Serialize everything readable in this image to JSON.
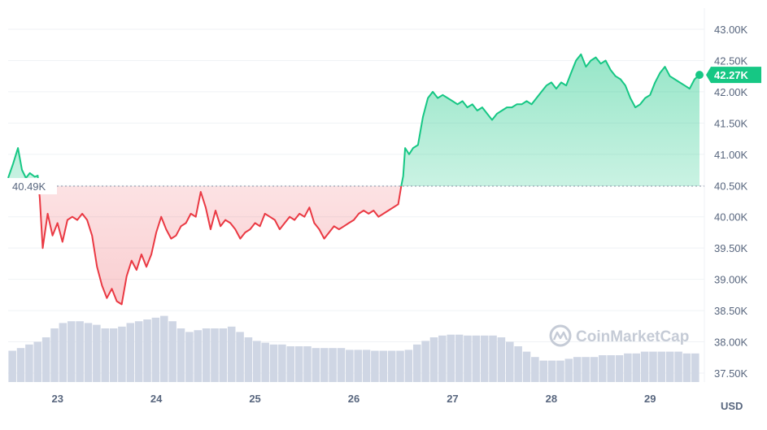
{
  "chart_data": {
    "type": "line",
    "x_labels": [
      "23",
      "24",
      "25",
      "26",
      "27",
      "28",
      "29"
    ],
    "y_ticks": [
      "43.00K",
      "42.50K",
      "42.00K",
      "41.50K",
      "41.00K",
      "40.50K",
      "40.00K",
      "39.50K",
      "39.00K",
      "38.50K",
      "38.00K",
      "37.50K"
    ],
    "y_tick_values": [
      43000,
      42500,
      42000,
      41500,
      41000,
      40500,
      40000,
      39500,
      39000,
      38500,
      38000,
      37500
    ],
    "ylim": [
      37500,
      43000
    ],
    "xlim": [
      22.5,
      29.5
    ],
    "unit_label": "USD",
    "reference_value": 40490,
    "reference_label": "40.49K",
    "current_value": 42270,
    "current_label": "42.27K",
    "up_color": "#16c784",
    "down_color": "#ea3943",
    "watermark": "CoinMarketCap",
    "series": [
      {
        "points": [
          [
            22.5,
            40620
          ],
          [
            22.55,
            40850
          ],
          [
            22.6,
            41100
          ],
          [
            22.64,
            40750
          ],
          [
            22.68,
            40620
          ],
          [
            22.72,
            40700
          ],
          [
            22.77,
            40640
          ],
          [
            22.8,
            40660
          ],
          [
            22.82,
            40300
          ],
          [
            22.85,
            39500
          ],
          [
            22.9,
            40050
          ],
          [
            22.95,
            39700
          ],
          [
            23.0,
            39900
          ],
          [
            23.05,
            39600
          ],
          [
            23.1,
            39950
          ],
          [
            23.15,
            40000
          ],
          [
            23.2,
            39950
          ],
          [
            23.25,
            40050
          ],
          [
            23.3,
            39950
          ],
          [
            23.35,
            39700
          ],
          [
            23.4,
            39200
          ],
          [
            23.45,
            38900
          ],
          [
            23.5,
            38700
          ],
          [
            23.55,
            38850
          ],
          [
            23.6,
            38650
          ],
          [
            23.65,
            38600
          ],
          [
            23.7,
            39050
          ],
          [
            23.75,
            39300
          ],
          [
            23.8,
            39150
          ],
          [
            23.85,
            39400
          ],
          [
            23.9,
            39200
          ],
          [
            23.95,
            39400
          ],
          [
            24.0,
            39750
          ],
          [
            24.05,
            40000
          ],
          [
            24.1,
            39800
          ],
          [
            24.15,
            39650
          ],
          [
            24.2,
            39700
          ],
          [
            24.25,
            39850
          ],
          [
            24.3,
            39900
          ],
          [
            24.35,
            40050
          ],
          [
            24.4,
            40000
          ],
          [
            24.45,
            40400
          ],
          [
            24.5,
            40150
          ],
          [
            24.55,
            39800
          ],
          [
            24.6,
            40100
          ],
          [
            24.65,
            39850
          ],
          [
            24.7,
            39950
          ],
          [
            24.75,
            39900
          ],
          [
            24.8,
            39800
          ],
          [
            24.85,
            39650
          ],
          [
            24.9,
            39750
          ],
          [
            24.95,
            39800
          ],
          [
            25.0,
            39900
          ],
          [
            25.05,
            39850
          ],
          [
            25.1,
            40050
          ],
          [
            25.15,
            40000
          ],
          [
            25.2,
            39950
          ],
          [
            25.25,
            39800
          ],
          [
            25.3,
            39900
          ],
          [
            25.35,
            40000
          ],
          [
            25.4,
            39950
          ],
          [
            25.45,
            40050
          ],
          [
            25.5,
            40000
          ],
          [
            25.55,
            40150
          ],
          [
            25.6,
            39900
          ],
          [
            25.65,
            39800
          ],
          [
            25.7,
            39650
          ],
          [
            25.75,
            39750
          ],
          [
            25.8,
            39850
          ],
          [
            25.85,
            39800
          ],
          [
            25.9,
            39850
          ],
          [
            25.95,
            39900
          ],
          [
            26.0,
            39950
          ],
          [
            26.05,
            40050
          ],
          [
            26.1,
            40100
          ],
          [
            26.15,
            40050
          ],
          [
            26.2,
            40100
          ],
          [
            26.25,
            40000
          ],
          [
            26.3,
            40050
          ],
          [
            26.35,
            40100
          ],
          [
            26.45,
            40200
          ],
          [
            26.48,
            40490
          ],
          [
            26.5,
            40650
          ],
          [
            26.52,
            41100
          ],
          [
            26.56,
            41000
          ],
          [
            26.6,
            41100
          ],
          [
            26.65,
            41150
          ],
          [
            26.7,
            41600
          ],
          [
            26.75,
            41900
          ],
          [
            26.8,
            42000
          ],
          [
            26.85,
            41900
          ],
          [
            26.9,
            41950
          ],
          [
            26.95,
            41900
          ],
          [
            27.0,
            41850
          ],
          [
            27.05,
            41800
          ],
          [
            27.1,
            41850
          ],
          [
            27.15,
            41750
          ],
          [
            27.2,
            41800
          ],
          [
            27.25,
            41700
          ],
          [
            27.3,
            41750
          ],
          [
            27.35,
            41650
          ],
          [
            27.4,
            41550
          ],
          [
            27.45,
            41650
          ],
          [
            27.5,
            41700
          ],
          [
            27.55,
            41750
          ],
          [
            27.6,
            41750
          ],
          [
            27.65,
            41800
          ],
          [
            27.7,
            41800
          ],
          [
            27.75,
            41850
          ],
          [
            27.8,
            41800
          ],
          [
            27.85,
            41900
          ],
          [
            27.9,
            42000
          ],
          [
            27.95,
            42100
          ],
          [
            28.0,
            42150
          ],
          [
            28.05,
            42050
          ],
          [
            28.1,
            42150
          ],
          [
            28.15,
            42100
          ],
          [
            28.2,
            42300
          ],
          [
            28.25,
            42500
          ],
          [
            28.3,
            42600
          ],
          [
            28.35,
            42400
          ],
          [
            28.4,
            42500
          ],
          [
            28.45,
            42550
          ],
          [
            28.5,
            42450
          ],
          [
            28.55,
            42500
          ],
          [
            28.6,
            42350
          ],
          [
            28.65,
            42250
          ],
          [
            28.7,
            42200
          ],
          [
            28.75,
            42100
          ],
          [
            28.8,
            41900
          ],
          [
            28.85,
            41750
          ],
          [
            28.9,
            41800
          ],
          [
            28.95,
            41900
          ],
          [
            29.0,
            41950
          ],
          [
            29.05,
            42150
          ],
          [
            29.1,
            42300
          ],
          [
            29.15,
            42400
          ],
          [
            29.2,
            42250
          ],
          [
            29.25,
            42200
          ],
          [
            29.3,
            42150
          ],
          [
            29.35,
            42100
          ],
          [
            29.4,
            42050
          ],
          [
            29.45,
            42200
          ],
          [
            29.5,
            42270
          ]
        ]
      }
    ],
    "volume": {
      "x_start": 22.5,
      "x_end": 29.5,
      "levels": [
        0.35,
        0.38,
        0.42,
        0.45,
        0.5,
        0.6,
        0.66,
        0.68,
        0.68,
        0.66,
        0.64,
        0.6,
        0.6,
        0.62,
        0.66,
        0.68,
        0.7,
        0.72,
        0.74,
        0.68,
        0.6,
        0.56,
        0.58,
        0.6,
        0.6,
        0.6,
        0.62,
        0.56,
        0.5,
        0.46,
        0.44,
        0.42,
        0.42,
        0.4,
        0.4,
        0.4,
        0.38,
        0.38,
        0.38,
        0.38,
        0.36,
        0.36,
        0.36,
        0.35,
        0.35,
        0.35,
        0.35,
        0.36,
        0.42,
        0.46,
        0.5,
        0.52,
        0.53,
        0.53,
        0.52,
        0.52,
        0.52,
        0.52,
        0.5,
        0.45,
        0.4,
        0.34,
        0.28,
        0.24,
        0.24,
        0.24,
        0.26,
        0.28,
        0.28,
        0.28,
        0.3,
        0.3,
        0.3,
        0.32,
        0.32,
        0.34,
        0.34,
        0.34,
        0.34,
        0.34,
        0.32,
        0.32
      ]
    }
  }
}
